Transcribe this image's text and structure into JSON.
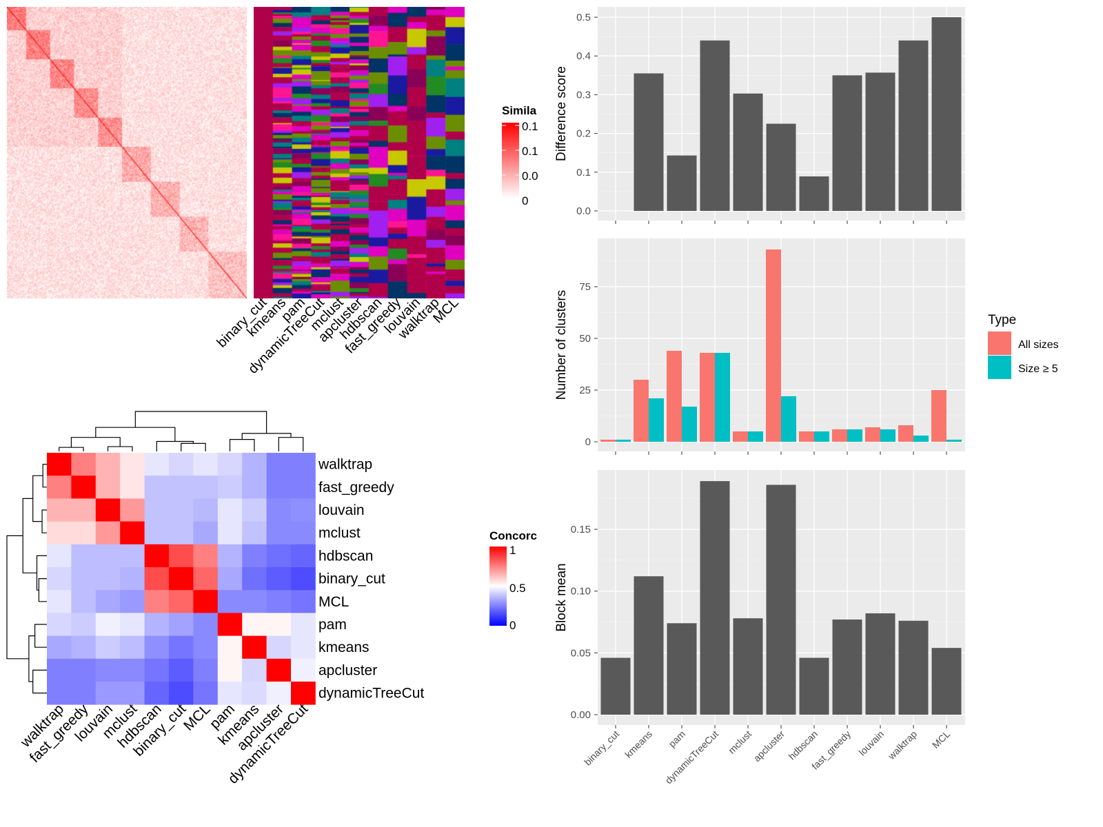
{
  "chart_data": [
    {
      "type": "heatmap",
      "title": "",
      "legend_title": "Simila",
      "legend_labels": [
        "0.1",
        "0.1",
        "0.0",
        "0"
      ],
      "legend_placement": "right",
      "color_low": "#ffffff",
      "color_high": "#ff0000",
      "cluster_columns": [
        "binary_cut",
        "kmeans",
        "pam",
        "dynamicTreeCut",
        "mclust",
        "apcluster",
        "hdbscan",
        "fast_greedy",
        "louvain",
        "walktrap",
        "MCL"
      ]
    },
    {
      "type": "heatmap",
      "legend_title": "Concorc",
      "legend_labels": [
        "1",
        "0.5",
        "0"
      ],
      "legend_placement": "right",
      "color_low": "#0000ff",
      "color_mid": "#ffffff",
      "color_high": "#ff0000",
      "rows": [
        "walktrap",
        "fast_greedy",
        "louvain",
        "mclust",
        "hdbscan",
        "binary_cut",
        "MCL",
        "pam",
        "kmeans",
        "apcluster",
        "dynamicTreeCut"
      ],
      "columns": [
        "walktrap",
        "fast_greedy",
        "louvain",
        "mclust",
        "hdbscan",
        "binary_cut",
        "MCL",
        "pam",
        "kmeans",
        "apcluster",
        "dynamicTreeCut"
      ],
      "values": [
        [
          1,
          0.75,
          0.65,
          0.55,
          0.45,
          0.42,
          0.45,
          0.42,
          0.35,
          0.25,
          0.25
        ],
        [
          0.75,
          1,
          0.65,
          0.55,
          0.38,
          0.38,
          0.38,
          0.4,
          0.35,
          0.25,
          0.25
        ],
        [
          0.65,
          0.65,
          1,
          0.7,
          0.38,
          0.38,
          0.36,
          0.45,
          0.4,
          0.27,
          0.28
        ],
        [
          0.57,
          0.57,
          0.7,
          1,
          0.38,
          0.38,
          0.33,
          0.45,
          0.38,
          0.27,
          0.27
        ],
        [
          0.45,
          0.37,
          0.37,
          0.37,
          1,
          0.85,
          0.75,
          0.35,
          0.25,
          0.22,
          0.2
        ],
        [
          0.42,
          0.37,
          0.37,
          0.35,
          0.85,
          1,
          0.8,
          0.33,
          0.22,
          0.18,
          0.15
        ],
        [
          0.45,
          0.37,
          0.33,
          0.3,
          0.75,
          0.8,
          1,
          0.27,
          0.27,
          0.25,
          0.23
        ],
        [
          0.42,
          0.4,
          0.47,
          0.45,
          0.35,
          0.32,
          0.27,
          1,
          0.52,
          0.52,
          0.45
        ],
        [
          0.33,
          0.35,
          0.4,
          0.37,
          0.28,
          0.23,
          0.27,
          0.52,
          1,
          0.42,
          0.45
        ],
        [
          0.25,
          0.25,
          0.27,
          0.27,
          0.23,
          0.18,
          0.25,
          0.52,
          0.42,
          1,
          0.47
        ],
        [
          0.25,
          0.25,
          0.3,
          0.3,
          0.2,
          0.15,
          0.23,
          0.45,
          0.43,
          0.47,
          1
        ]
      ]
    },
    {
      "type": "bar",
      "categories": [
        "binary_cut",
        "kmeans",
        "pam",
        "dynamicTreeCut",
        "mclust",
        "apcluster",
        "hdbscan",
        "fast_greedy",
        "louvain",
        "walktrap",
        "MCL"
      ],
      "values": [
        0,
        0.355,
        0.143,
        0.44,
        0.303,
        0.225,
        0.089,
        0.35,
        0.357,
        0.44,
        0.5
      ],
      "ylabel": "Difference score",
      "ylim": [
        0,
        0.5
      ],
      "yticks": [
        "0.0",
        "0.1",
        "0.2",
        "0.3",
        "0.4",
        "0.5"
      ],
      "grid": true,
      "color": "#595959"
    },
    {
      "type": "bar",
      "categories": [
        "binary_cut",
        "kmeans",
        "pam",
        "dynamicTreeCut",
        "mclust",
        "apcluster",
        "hdbscan",
        "fast_greedy",
        "louvain",
        "walktrap",
        "MCL"
      ],
      "series": [
        {
          "name": "All sizes",
          "values": [
            1,
            30,
            44,
            43,
            5,
            93,
            5,
            6,
            7,
            8,
            25
          ],
          "color": "#F8766D"
        },
        {
          "name": "Size ≥ 5",
          "values": [
            1,
            21,
            17,
            43,
            5,
            22,
            5,
            6,
            6,
            3,
            1
          ],
          "color": "#00BFC4"
        }
      ],
      "ylabel": "Number of clusters",
      "ylim": [
        0,
        95
      ],
      "yticks": [
        "0",
        "25",
        "50",
        "75"
      ],
      "legend_title": "Type",
      "legend_placement": "right",
      "grid": true
    },
    {
      "type": "bar",
      "categories": [
        "binary_cut",
        "kmeans",
        "pam",
        "dynamicTreeCut",
        "mclust",
        "apcluster",
        "hdbscan",
        "fast_greedy",
        "louvain",
        "walktrap",
        "MCL"
      ],
      "values": [
        0.046,
        0.112,
        0.074,
        0.189,
        0.078,
        0.186,
        0.046,
        0.077,
        0.082,
        0.076,
        0.054
      ],
      "ylabel": "Block mean",
      "ylim": [
        0,
        0.195
      ],
      "yticks": [
        "0.00",
        "0.05",
        "0.10",
        "0.15"
      ],
      "grid": true,
      "color": "#595959"
    }
  ]
}
